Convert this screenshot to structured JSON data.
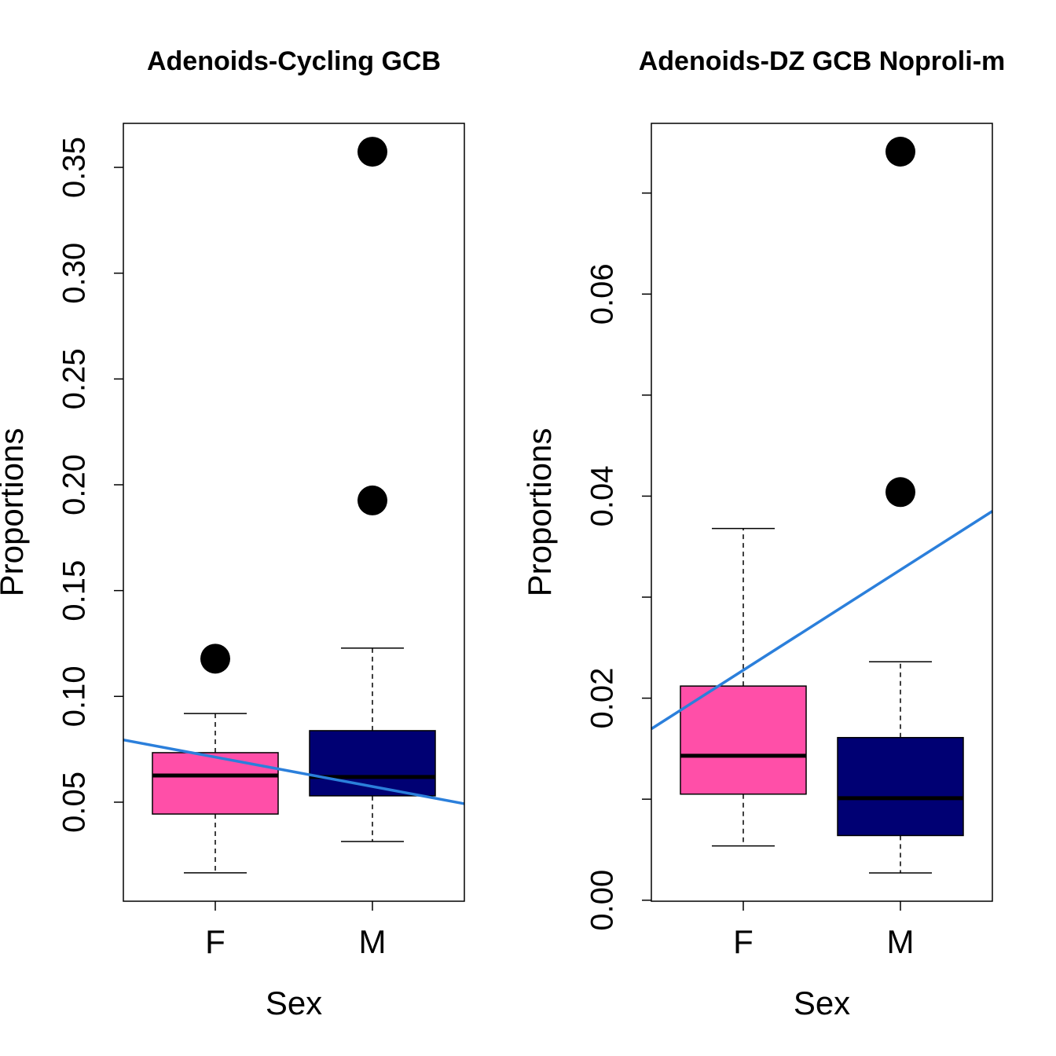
{
  "chart_data": [
    {
      "type": "box",
      "title": "Adenoids-Cycling GCB",
      "xlabel": "Sex",
      "ylabel": "Proportions",
      "categories": [
        "F",
        "M"
      ],
      "boxes": [
        {
          "color": "#ff4fa8",
          "whislo": 0.0166,
          "q1": 0.0444,
          "med": 0.0626,
          "q3": 0.0734,
          "whishi": 0.0919,
          "fliers": [
            0.1178
          ]
        },
        {
          "color": "#000073",
          "whislo": 0.0314,
          "q1": 0.053,
          "med": 0.0619,
          "q3": 0.0838,
          "whishi": 0.1228,
          "fliers": [
            0.1926,
            0.3574
          ]
        }
      ],
      "trend": {
        "color": "#2b7fdb",
        "values": [
          0.0713,
          0.0574
        ]
      },
      "ylim": [
        0.0032,
        0.3708
      ],
      "yticks": [
        {
          "value": 0.05,
          "label": "0.05"
        },
        {
          "value": 0.1,
          "label": "0.10"
        },
        {
          "value": 0.15,
          "label": "0.15"
        },
        {
          "value": 0.2,
          "label": "0.20"
        },
        {
          "value": 0.25,
          "label": "0.25"
        },
        {
          "value": 0.3,
          "label": "0.30"
        },
        {
          "value": 0.35,
          "label": "0.35"
        }
      ],
      "minor_yticks": []
    },
    {
      "type": "box",
      "title": "Adenoids-DZ GCB Noproli-m",
      "xlabel": "Sex",
      "ylabel": "Proportions",
      "categories": [
        "F",
        "M"
      ],
      "boxes": [
        {
          "color": "#ff4fa8",
          "whislo": 0.00537,
          "q1": 0.0105,
          "med": 0.0143,
          "q3": 0.0212,
          "whishi": 0.0368,
          "fliers": []
        },
        {
          "color": "#000073",
          "whislo": 0.0027,
          "q1": 0.0064,
          "med": 0.0101,
          "q3": 0.0161,
          "whishi": 0.0236,
          "fliers": [
            0.0404,
            0.0741
          ]
        }
      ],
      "trend": {
        "color": "#2b7fdb",
        "values": [
          0.02277,
          0.0327
        ]
      },
      "ylim": [
        -0.0001,
        0.0769
      ],
      "yticks": [
        {
          "value": 0,
          "label": "0.00"
        },
        {
          "value": 0.02,
          "label": "0.02"
        },
        {
          "value": 0.04,
          "label": "0.04"
        },
        {
          "value": 0.06,
          "label": "0.06"
        }
      ],
      "minor_yticks": [
        0.01,
        0.03,
        0.05,
        0.07
      ]
    }
  ]
}
